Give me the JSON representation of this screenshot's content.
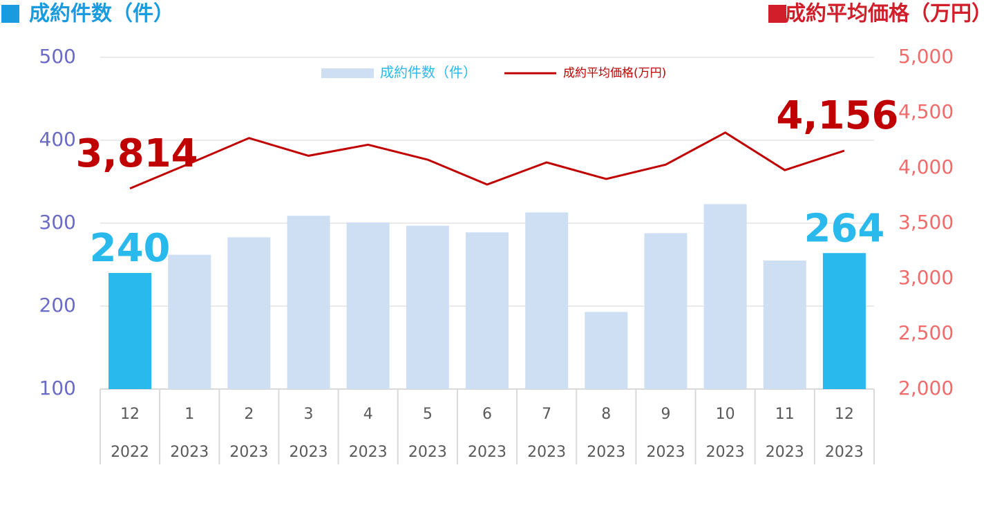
{
  "chart_data": {
    "type": "bar-line",
    "ylabel": "成約件数（件）",
    "y2label": "成約平均価格（万円）",
    "categories": [
      [
        "12",
        "2022"
      ],
      [
        "1",
        "2023"
      ],
      [
        "2",
        "2023"
      ],
      [
        "3",
        "2023"
      ],
      [
        "4",
        "2023"
      ],
      [
        "5",
        "2023"
      ],
      [
        "6",
        "2023"
      ],
      [
        "7",
        "2023"
      ],
      [
        "8",
        "2023"
      ],
      [
        "9",
        "2023"
      ],
      [
        "10",
        "2023"
      ],
      [
        "11",
        "2023"
      ],
      [
        "12",
        "2023"
      ]
    ],
    "series": [
      {
        "name": "成約件数（件）",
        "type": "bar",
        "color": "#cfdff3",
        "colors": [
          "#29b9ec",
          "#cfdff3",
          "#cfdff3",
          "#cfdff3",
          "#cfdff3",
          "#cfdff3",
          "#cfdff3",
          "#cfdff3",
          "#cfdff3",
          "#cfdff3",
          "#cfdff3",
          "#cfdff3",
          "#29b9ec"
        ],
        "values": [
          240,
          262,
          283,
          309,
          301,
          297,
          289,
          313,
          193,
          288,
          323,
          255,
          264
        ],
        "value_labels": [
          "240",
          null,
          null,
          null,
          null,
          null,
          null,
          null,
          null,
          null,
          null,
          null,
          "264"
        ],
        "label_color": "#29b9ec"
      },
      {
        "name": "成約平均価格(万円)",
        "type": "line",
        "axis": "y2",
        "color": "#c00000",
        "values": [
          3814,
          4040,
          4270,
          4110,
          4210,
          4075,
          3850,
          4050,
          3900,
          4030,
          4320,
          3980,
          4156
        ],
        "value_labels": [
          "3,814",
          null,
          null,
          null,
          null,
          null,
          null,
          null,
          null,
          null,
          null,
          null,
          "4,156"
        ],
        "label_color": "#c00000"
      }
    ],
    "ylim": [
      100,
      500
    ],
    "yticks": [
      100,
      200,
      300,
      400,
      500
    ],
    "y2lim": [
      2000,
      5000
    ],
    "y2ticks": [
      {
        "value": 2000,
        "label": "2,000"
      },
      {
        "value": 2500,
        "label": "2,500"
      },
      {
        "value": 3000,
        "label": "3,000"
      },
      {
        "value": 3500,
        "label": "3,500"
      },
      {
        "value": 4000,
        "label": "4,000"
      },
      {
        "value": 4500,
        "label": "4,500"
      },
      {
        "value": 5000,
        "label": "5,000"
      }
    ],
    "grid": true,
    "legend": "top"
  }
}
